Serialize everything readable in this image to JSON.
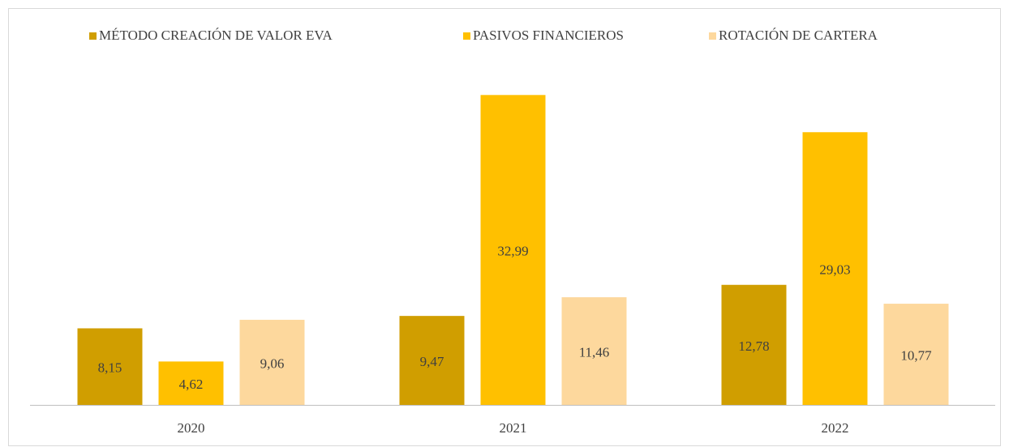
{
  "chart_data": {
    "type": "bar",
    "categories": [
      "2020",
      "2021",
      "2022"
    ],
    "series": [
      {
        "name": "MÉTODO CREACIÓN DE VALOR EVA",
        "color": "#d09e00",
        "values": [
          8.15,
          9.47,
          12.78
        ],
        "value_labels": [
          "8,15",
          "9,47",
          "12,78"
        ]
      },
      {
        "name": "PASIVOS FINANCIEROS",
        "color": "#ffc000",
        "values": [
          4.62,
          32.99,
          29.03
        ],
        "value_labels": [
          "4,62",
          "32,99",
          "29,03"
        ]
      },
      {
        "name": "ROTACIÓN DE CARTERA",
        "color": "#fdd89d",
        "values": [
          9.06,
          11.46,
          10.77
        ],
        "value_labels": [
          "9,06",
          "11,46",
          "10,77"
        ]
      }
    ],
    "legend": "top"
  }
}
